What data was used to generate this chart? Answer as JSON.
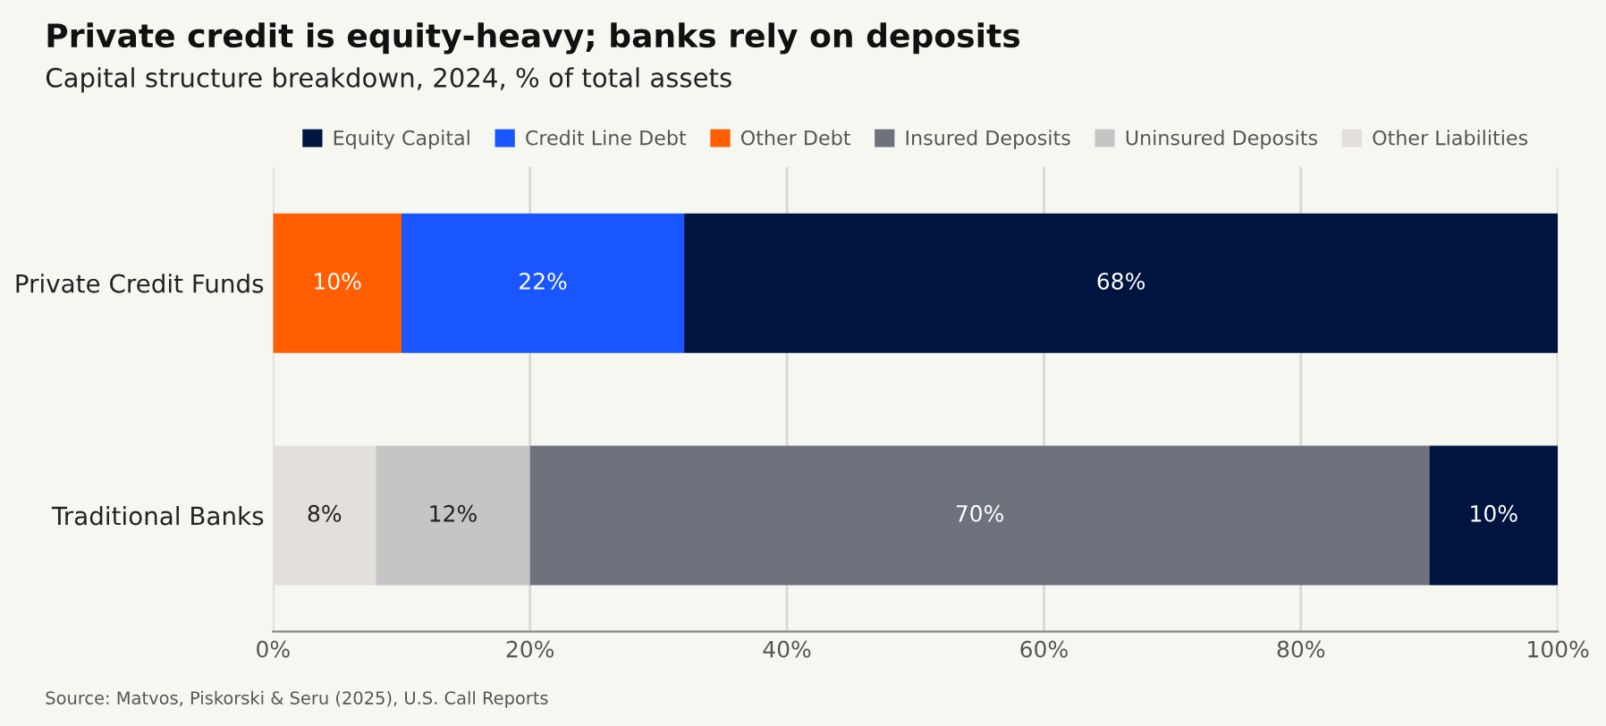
{
  "chart_data": {
    "type": "bar",
    "orientation": "horizontal",
    "stacked": true,
    "title": "Private credit is equity-heavy; banks rely on deposits",
    "subtitle": "Capital structure breakdown, 2024, % of total assets",
    "categories": [
      "Private Credit Funds",
      "Traditional Banks"
    ],
    "series": [
      {
        "name": "Other Liabilities",
        "color": "#e3dfdb",
        "values": [
          null,
          8
        ],
        "value_labels": [
          null,
          "8%"
        ]
      },
      {
        "name": "Uninsured Deposits",
        "color": "#c5c5c5",
        "values": [
          null,
          12
        ],
        "value_labels": [
          null,
          "12%"
        ]
      },
      {
        "name": "Insured Deposits",
        "color": "#6e727c",
        "values": [
          null,
          70
        ],
        "value_labels": [
          null,
          "70%"
        ]
      },
      {
        "name": "Other Debt",
        "color": "#ff5f00",
        "values": [
          10,
          null
        ],
        "value_labels": [
          "10%",
          null
        ]
      },
      {
        "name": "Credit Line Debt",
        "color": "#1a56ff",
        "values": [
          22,
          null
        ],
        "value_labels": [
          "22%",
          null
        ]
      },
      {
        "name": "Equity Capital",
        "color": "#001440",
        "values": [
          68,
          10
        ],
        "value_labels": [
          "68%",
          "10%"
        ]
      }
    ],
    "xlim": [
      0,
      100
    ],
    "xticks": [
      {
        "value": 0,
        "label": "0%"
      },
      {
        "value": 20,
        "label": "20%"
      },
      {
        "value": 40,
        "label": "40%"
      },
      {
        "value": 60,
        "label": "60%"
      },
      {
        "value": 80,
        "label": "80%"
      },
      {
        "value": 100,
        "label": "100%"
      }
    ],
    "grid": "x",
    "legend": "top",
    "annotations": [
      "Source: Matvos, Piskorski & Seru (2025), U.S. Call Reports"
    ]
  }
}
